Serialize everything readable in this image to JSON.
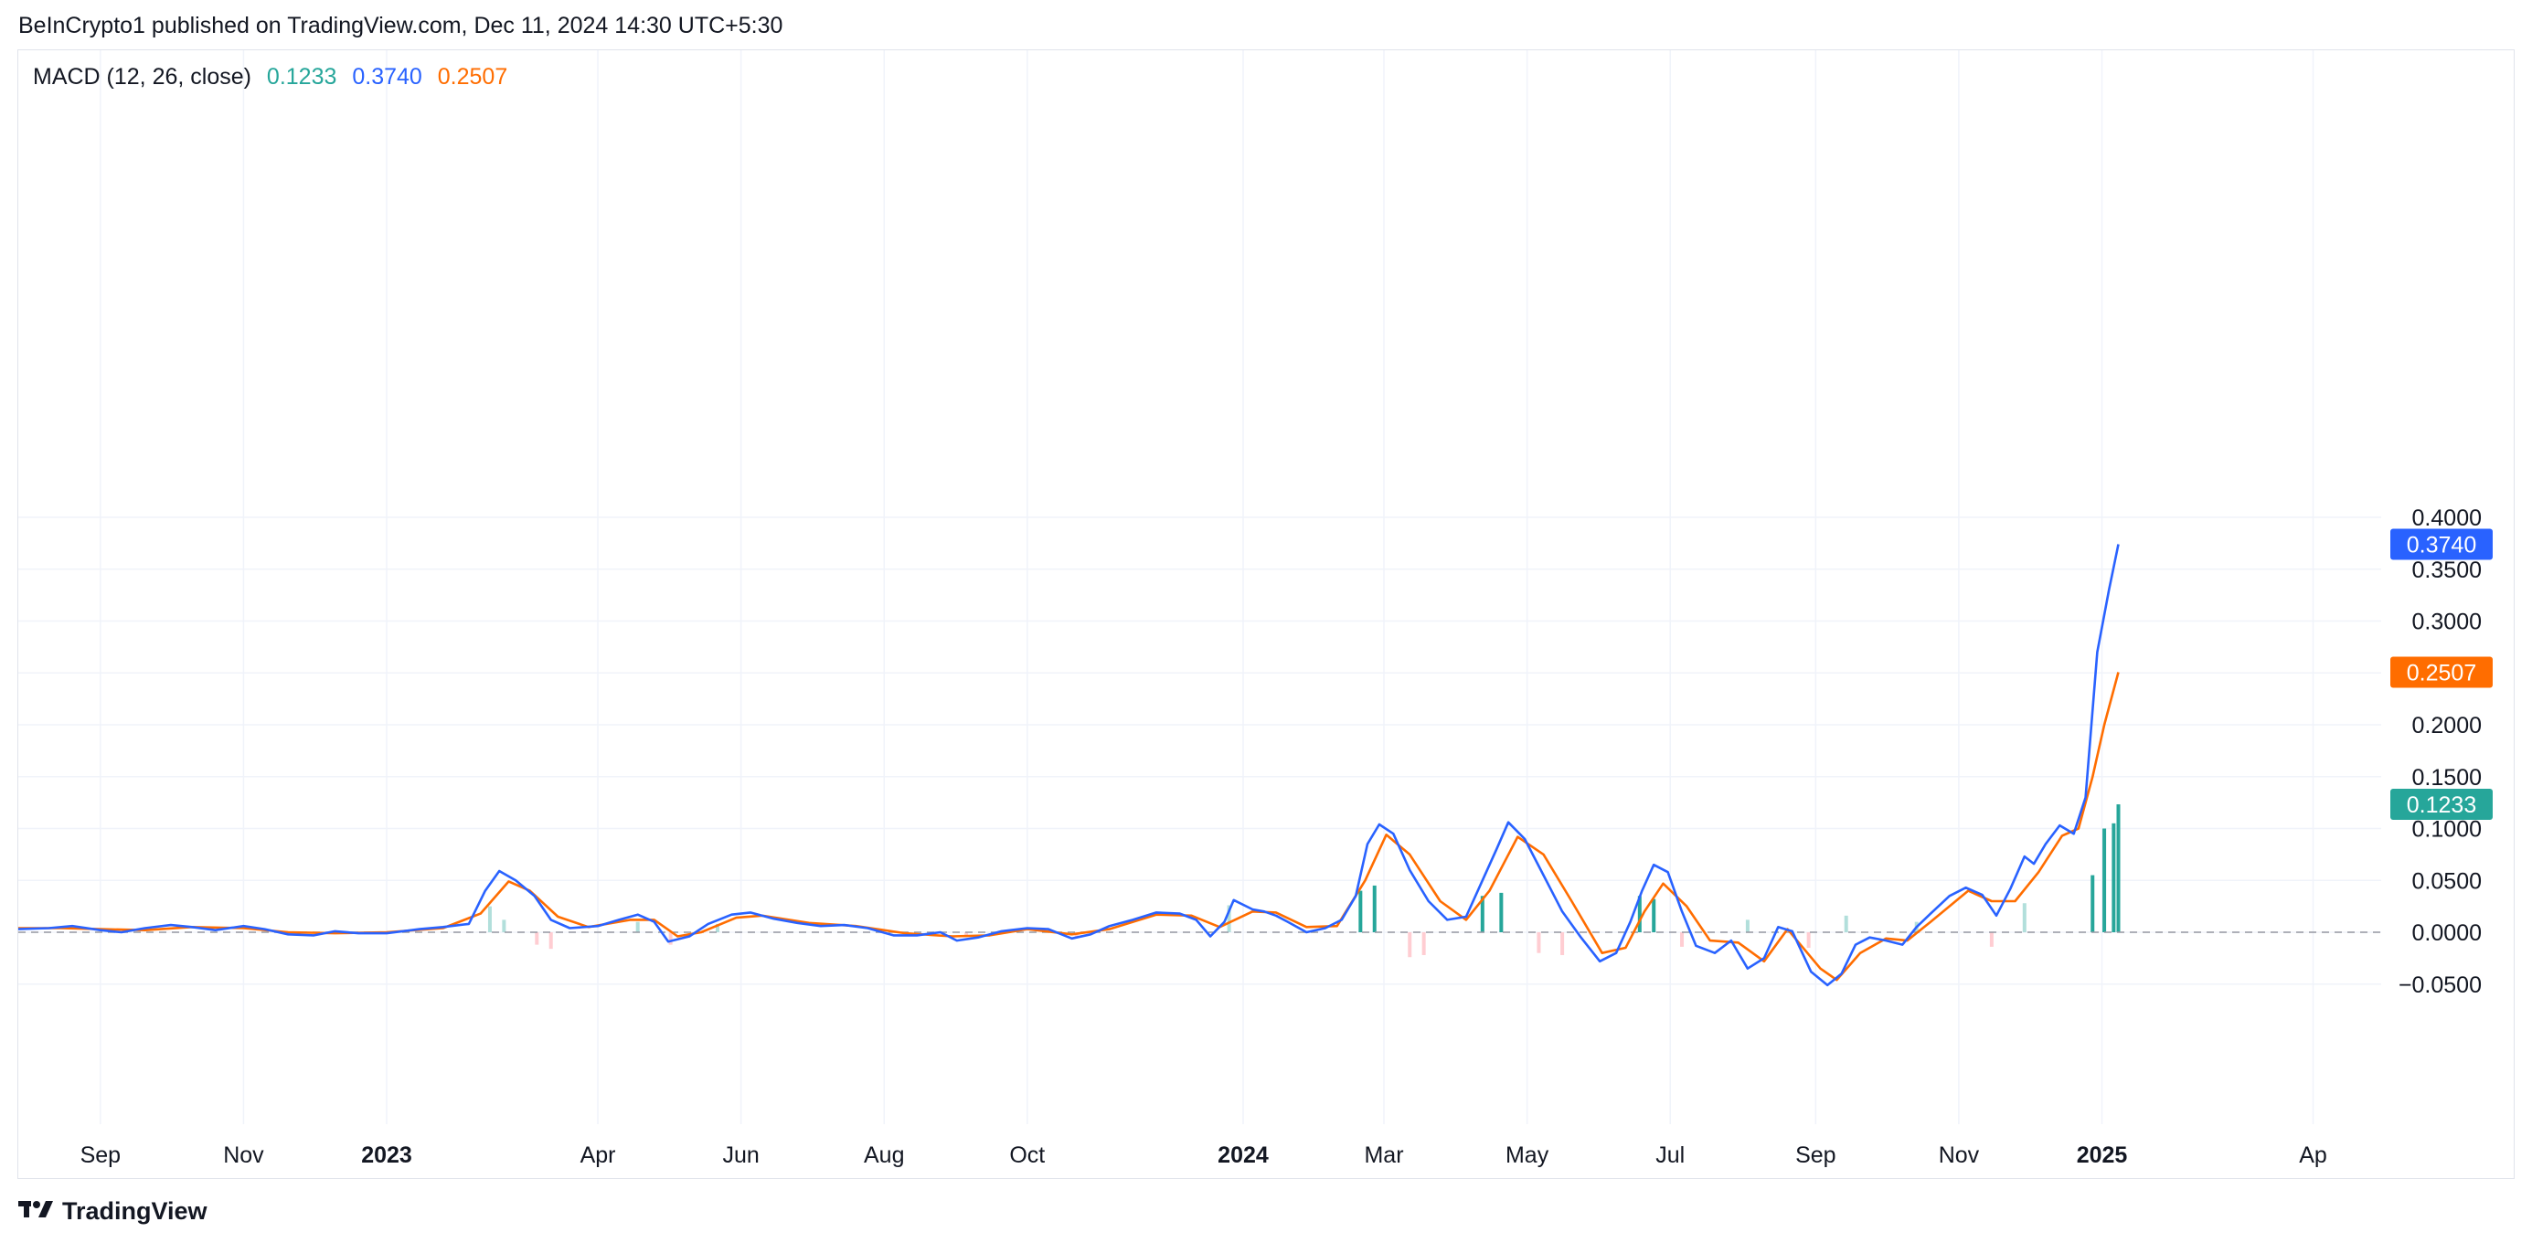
{
  "header": {
    "text": "BeInCrypto1 published on TradingView.com, Dec 11, 2024 14:30 UTC+5:30"
  },
  "legend": {
    "name": "MACD (12, 26, close)",
    "hist_value": "0.1233",
    "macd_value": "0.3740",
    "signal_value": "0.2507"
  },
  "footer": {
    "brand": "TradingView"
  },
  "colors": {
    "macd": "#2962ff",
    "signal": "#ff6d00",
    "hist_pos_light": "#b2dfdb",
    "hist_pos_dark": "#26a69a",
    "hist_neg_light": "#ffcdd2",
    "hist_neg_dark": "#ef5350",
    "grid": "#f0f3fa",
    "zero_line": "#9598a1"
  },
  "chart_data": {
    "type": "line",
    "title": "MACD (12, 26, close)",
    "x_range": [
      "2022-07-28",
      "2025-04-30"
    ],
    "ylim": [
      -0.095,
      0.405
    ],
    "y_ticks": [
      "0.4000",
      "0.3500",
      "0.3000",
      "0.2500",
      "0.2000",
      "0.1500",
      "0.1000",
      "0.0500",
      "0.0000",
      "−0.0500"
    ],
    "y_tick_values": [
      0.4,
      0.35,
      0.3,
      0.25,
      0.2,
      0.15,
      0.1,
      0.05,
      0,
      -0.05
    ],
    "x_ticks": [
      {
        "label": "Sep",
        "date": "2022-09-01",
        "bold": false
      },
      {
        "label": "Nov",
        "date": "2022-11-01",
        "bold": false
      },
      {
        "label": "2023",
        "date": "2023-01-01",
        "bold": true
      },
      {
        "label": "Apr",
        "date": "2023-04-01",
        "bold": false
      },
      {
        "label": "Jun",
        "date": "2023-06-01",
        "bold": false
      },
      {
        "label": "Aug",
        "date": "2023-08-01",
        "bold": false
      },
      {
        "label": "Oct",
        "date": "2023-10-01",
        "bold": false
      },
      {
        "label": "2024",
        "date": "2024-01-01",
        "bold": true
      },
      {
        "label": "Mar",
        "date": "2024-03-01",
        "bold": false
      },
      {
        "label": "May",
        "date": "2024-05-01",
        "bold": false
      },
      {
        "label": "Jul",
        "date": "2024-07-01",
        "bold": false
      },
      {
        "label": "Sep",
        "date": "2024-09-01",
        "bold": false
      },
      {
        "label": "Nov",
        "date": "2024-11-01",
        "bold": false
      },
      {
        "label": "2025",
        "date": "2025-01-01",
        "bold": true
      },
      {
        "label": "Ap",
        "date": "2025-04-01",
        "bold": false
      }
    ],
    "grid": true,
    "last_values": {
      "macd": 0.374,
      "signal": 0.2507,
      "histogram": 0.1233
    },
    "series": [
      {
        "key": "macd",
        "points": [
          [
            "2022-07-28",
            0.003
          ],
          [
            "2022-08-10",
            0.004
          ],
          [
            "2022-08-20",
            0.006
          ],
          [
            "2022-09-01",
            0.002
          ],
          [
            "2022-09-10",
            0.0
          ],
          [
            "2022-09-20",
            0.004
          ],
          [
            "2022-10-01",
            0.007
          ],
          [
            "2022-10-10",
            0.005
          ],
          [
            "2022-10-20",
            0.002
          ],
          [
            "2022-11-01",
            0.006
          ],
          [
            "2022-11-10",
            0.003
          ],
          [
            "2022-11-20",
            -0.002
          ],
          [
            "2022-12-01",
            -0.003
          ],
          [
            "2022-12-10",
            0.001
          ],
          [
            "2022-12-20",
            -0.001
          ],
          [
            "2023-01-01",
            -0.001
          ],
          [
            "2023-01-15",
            0.003
          ],
          [
            "2023-01-25",
            0.005
          ],
          [
            "2023-02-05",
            0.008
          ],
          [
            "2023-02-12",
            0.04
          ],
          [
            "2023-02-18",
            0.059
          ],
          [
            "2023-02-25",
            0.05
          ],
          [
            "2023-03-05",
            0.035
          ],
          [
            "2023-03-12",
            0.012
          ],
          [
            "2023-03-20",
            0.004
          ],
          [
            "2023-04-01",
            0.006
          ],
          [
            "2023-04-10",
            0.012
          ],
          [
            "2023-04-18",
            0.017
          ],
          [
            "2023-04-25",
            0.01
          ],
          [
            "2023-05-01",
            -0.009
          ],
          [
            "2023-05-10",
            -0.004
          ],
          [
            "2023-05-18",
            0.008
          ],
          [
            "2023-05-28",
            0.017
          ],
          [
            "2023-06-05",
            0.019
          ],
          [
            "2023-06-15",
            0.013
          ],
          [
            "2023-06-25",
            0.009
          ],
          [
            "2023-07-05",
            0.006
          ],
          [
            "2023-07-15",
            0.007
          ],
          [
            "2023-07-25",
            0.004
          ],
          [
            "2023-08-05",
            -0.003
          ],
          [
            "2023-08-15",
            -0.003
          ],
          [
            "2023-08-25",
            0.0
          ],
          [
            "2023-09-01",
            -0.008
          ],
          [
            "2023-09-10",
            -0.005
          ],
          [
            "2023-09-20",
            0.001
          ],
          [
            "2023-10-01",
            0.004
          ],
          [
            "2023-10-10",
            0.003
          ],
          [
            "2023-10-20",
            -0.006
          ],
          [
            "2023-10-28",
            -0.002
          ],
          [
            "2023-11-05",
            0.006
          ],
          [
            "2023-11-15",
            0.012
          ],
          [
            "2023-11-25",
            0.019
          ],
          [
            "2023-12-05",
            0.018
          ],
          [
            "2023-12-12",
            0.012
          ],
          [
            "2023-12-18",
            -0.004
          ],
          [
            "2023-12-24",
            0.01
          ],
          [
            "2023-12-28",
            0.031
          ],
          [
            "2024-01-05",
            0.022
          ],
          [
            "2024-01-10",
            0.02
          ],
          [
            "2024-01-15",
            0.016
          ],
          [
            "2024-01-20",
            0.01
          ],
          [
            "2024-01-28",
            0.0
          ],
          [
            "2024-02-05",
            0.004
          ],
          [
            "2024-02-12",
            0.012
          ],
          [
            "2024-02-18",
            0.035
          ],
          [
            "2024-02-23",
            0.085
          ],
          [
            "2024-02-28",
            0.104
          ],
          [
            "2024-03-05",
            0.095
          ],
          [
            "2024-03-12",
            0.06
          ],
          [
            "2024-03-20",
            0.03
          ],
          [
            "2024-03-28",
            0.012
          ],
          [
            "2024-04-05",
            0.015
          ],
          [
            "2024-04-12",
            0.05
          ],
          [
            "2024-04-18",
            0.08
          ],
          [
            "2024-04-23",
            0.106
          ],
          [
            "2024-04-30",
            0.09
          ],
          [
            "2024-05-08",
            0.055
          ],
          [
            "2024-05-16",
            0.02
          ],
          [
            "2024-05-24",
            -0.005
          ],
          [
            "2024-06-01",
            -0.028
          ],
          [
            "2024-06-08",
            -0.02
          ],
          [
            "2024-06-14",
            0.01
          ],
          [
            "2024-06-19",
            0.04
          ],
          [
            "2024-06-24",
            0.065
          ],
          [
            "2024-06-30",
            0.058
          ],
          [
            "2024-07-06",
            0.02
          ],
          [
            "2024-07-12",
            -0.013
          ],
          [
            "2024-07-20",
            -0.02
          ],
          [
            "2024-07-27",
            -0.008
          ],
          [
            "2024-08-03",
            -0.035
          ],
          [
            "2024-08-10",
            -0.025
          ],
          [
            "2024-08-16",
            0.005
          ],
          [
            "2024-08-22",
            0.001
          ],
          [
            "2024-08-30",
            -0.038
          ],
          [
            "2024-09-06",
            -0.051
          ],
          [
            "2024-09-12",
            -0.04
          ],
          [
            "2024-09-18",
            -0.012
          ],
          [
            "2024-09-24",
            -0.005
          ],
          [
            "2024-10-01",
            -0.008
          ],
          [
            "2024-10-08",
            -0.012
          ],
          [
            "2024-10-14",
            0.005
          ],
          [
            "2024-10-20",
            0.018
          ],
          [
            "2024-10-28",
            0.035
          ],
          [
            "2024-11-04",
            0.043
          ],
          [
            "2024-11-11",
            0.036
          ],
          [
            "2024-11-17",
            0.016
          ],
          [
            "2024-11-23",
            0.042
          ],
          [
            "2024-11-29",
            0.073
          ],
          [
            "2024-12-03",
            0.066
          ],
          [
            "2024-12-08",
            0.085
          ],
          [
            "2024-12-14",
            0.103
          ],
          [
            "2024-12-20",
            0.095
          ],
          [
            "2024-12-25",
            0.13
          ],
          [
            "2024-12-30",
            0.27
          ],
          [
            "2025-01-04",
            0.33
          ],
          [
            "2025-01-08",
            0.374
          ]
        ]
      },
      {
        "key": "signal",
        "points": [
          [
            "2022-07-28",
            0.004
          ],
          [
            "2022-08-15",
            0.004
          ],
          [
            "2022-09-01",
            0.003
          ],
          [
            "2022-09-20",
            0.002
          ],
          [
            "2022-10-10",
            0.005
          ],
          [
            "2022-11-01",
            0.004
          ],
          [
            "2022-11-20",
            0.0
          ],
          [
            "2022-12-10",
            -0.001
          ],
          [
            "2023-01-01",
            0.0
          ],
          [
            "2023-01-25",
            0.004
          ],
          [
            "2023-02-10",
            0.018
          ],
          [
            "2023-02-22",
            0.049
          ],
          [
            "2023-03-03",
            0.04
          ],
          [
            "2023-03-15",
            0.015
          ],
          [
            "2023-03-28",
            0.005
          ],
          [
            "2023-04-15",
            0.012
          ],
          [
            "2023-04-25",
            0.012
          ],
          [
            "2023-05-05",
            -0.004
          ],
          [
            "2023-05-15",
            0.0
          ],
          [
            "2023-05-30",
            0.014
          ],
          [
            "2023-06-10",
            0.016
          ],
          [
            "2023-06-30",
            0.009
          ],
          [
            "2023-07-20",
            0.006
          ],
          [
            "2023-08-10",
            -0.001
          ],
          [
            "2023-08-30",
            -0.004
          ],
          [
            "2023-09-15",
            -0.003
          ],
          [
            "2023-10-01",
            0.003
          ],
          [
            "2023-10-20",
            -0.002
          ],
          [
            "2023-11-05",
            0.003
          ],
          [
            "2023-11-25",
            0.017
          ],
          [
            "2023-12-10",
            0.016
          ],
          [
            "2023-12-22",
            0.005
          ],
          [
            "2024-01-05",
            0.02
          ],
          [
            "2024-01-15",
            0.019
          ],
          [
            "2024-01-28",
            0.005
          ],
          [
            "2024-02-10",
            0.006
          ],
          [
            "2024-02-22",
            0.05
          ],
          [
            "2024-03-02",
            0.094
          ],
          [
            "2024-03-12",
            0.075
          ],
          [
            "2024-03-25",
            0.03
          ],
          [
            "2024-04-05",
            0.012
          ],
          [
            "2024-04-15",
            0.04
          ],
          [
            "2024-04-27",
            0.092
          ],
          [
            "2024-05-08",
            0.075
          ],
          [
            "2024-05-20",
            0.03
          ],
          [
            "2024-06-02",
            -0.02
          ],
          [
            "2024-06-12",
            -0.015
          ],
          [
            "2024-06-20",
            0.02
          ],
          [
            "2024-06-28",
            0.047
          ],
          [
            "2024-07-08",
            0.025
          ],
          [
            "2024-07-18",
            -0.008
          ],
          [
            "2024-07-30",
            -0.01
          ],
          [
            "2024-08-10",
            -0.028
          ],
          [
            "2024-08-20",
            0.003
          ],
          [
            "2024-09-03",
            -0.035
          ],
          [
            "2024-09-10",
            -0.046
          ],
          [
            "2024-09-20",
            -0.02
          ],
          [
            "2024-10-01",
            -0.006
          ],
          [
            "2024-10-10",
            -0.008
          ],
          [
            "2024-10-20",
            0.01
          ],
          [
            "2024-11-05",
            0.04
          ],
          [
            "2024-11-15",
            0.03
          ],
          [
            "2024-11-25",
            0.03
          ],
          [
            "2024-12-05",
            0.058
          ],
          [
            "2024-12-15",
            0.093
          ],
          [
            "2024-12-22",
            0.1
          ],
          [
            "2024-12-28",
            0.15
          ],
          [
            "2025-01-02",
            0.2
          ],
          [
            "2025-01-08",
            0.2507
          ]
        ]
      }
    ],
    "histogram": [
      {
        "date": "2023-02-14",
        "value": 0.025
      },
      {
        "date": "2023-02-20",
        "value": 0.012
      },
      {
        "date": "2023-03-06",
        "value": -0.012
      },
      {
        "date": "2023-03-12",
        "value": -0.016
      },
      {
        "date": "2023-04-18",
        "value": 0.01
      },
      {
        "date": "2023-05-02",
        "value": -0.012
      },
      {
        "date": "2023-05-22",
        "value": 0.008
      },
      {
        "date": "2023-09-05",
        "value": -0.004
      },
      {
        "date": "2023-10-22",
        "value": -0.005
      },
      {
        "date": "2023-12-26",
        "value": 0.026
      },
      {
        "date": "2024-02-20",
        "value": 0.04
      },
      {
        "date": "2024-02-26",
        "value": 0.045
      },
      {
        "date": "2024-03-12",
        "value": -0.024
      },
      {
        "date": "2024-03-18",
        "value": -0.022
      },
      {
        "date": "2024-04-12",
        "value": 0.035
      },
      {
        "date": "2024-04-20",
        "value": 0.038
      },
      {
        "date": "2024-05-06",
        "value": -0.02
      },
      {
        "date": "2024-05-16",
        "value": -0.022
      },
      {
        "date": "2024-06-18",
        "value": 0.035
      },
      {
        "date": "2024-06-24",
        "value": 0.032
      },
      {
        "date": "2024-07-06",
        "value": -0.014
      },
      {
        "date": "2024-08-03",
        "value": 0.012
      },
      {
        "date": "2024-08-29",
        "value": -0.015
      },
      {
        "date": "2024-09-14",
        "value": 0.016
      },
      {
        "date": "2024-10-14",
        "value": 0.01
      },
      {
        "date": "2024-11-15",
        "value": -0.014
      },
      {
        "date": "2024-11-29",
        "value": 0.028
      },
      {
        "date": "2024-12-28",
        "value": 0.055
      },
      {
        "date": "2025-01-02",
        "value": 0.1
      },
      {
        "date": "2025-01-06",
        "value": 0.105
      },
      {
        "date": "2025-01-08",
        "value": 0.1233
      }
    ]
  }
}
